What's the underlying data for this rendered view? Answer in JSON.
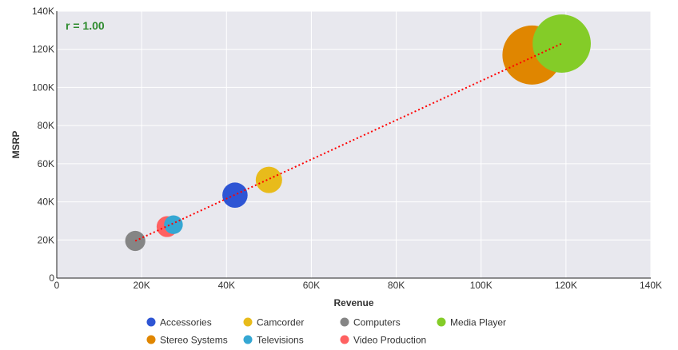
{
  "chart_data": {
    "type": "scatter",
    "subtype": "bubble",
    "title": "",
    "xlabel": "Revenue",
    "ylabel": "MSRP",
    "xlim": [
      0,
      140000
    ],
    "ylim": [
      0,
      140000
    ],
    "x_ticks": [
      "0",
      "20K",
      "40K",
      "60K",
      "80K",
      "100K",
      "120K",
      "140K"
    ],
    "y_ticks": [
      "0",
      "20K",
      "40K",
      "60K",
      "80K",
      "100K",
      "120K",
      "140K"
    ],
    "grid": true,
    "legend_position": "bottom",
    "annotation": "r = 1.00",
    "annotation_color": "#2e8b2e",
    "trendline": {
      "style": "dotted",
      "color": "#ff0000",
      "x": [
        18500,
        119000
      ],
      "y": [
        19500,
        123000
      ]
    },
    "series": [
      {
        "name": "Accessories",
        "color": "#2e55d4",
        "x": 42000,
        "y": 43500,
        "size": 11
      },
      {
        "name": "Camcorder",
        "color": "#e8bb1b",
        "x": 50000,
        "y": 51500,
        "size": 12
      },
      {
        "name": "Computers",
        "color": "#858585",
        "x": 18500,
        "y": 19500,
        "size": 7
      },
      {
        "name": "Media Player",
        "color": "#84cc28",
        "x": 119000,
        "y": 123000,
        "size": 58
      },
      {
        "name": "Stereo Systems",
        "color": "#e08600",
        "x": 112000,
        "y": 117000,
        "size": 60
      },
      {
        "name": "Televisions",
        "color": "#35a7d3",
        "x": 27500,
        "y": 28000,
        "size": 6
      },
      {
        "name": "Video Production",
        "color": "#ff6161",
        "x": 26000,
        "y": 27000,
        "size": 7.5
      }
    ]
  }
}
